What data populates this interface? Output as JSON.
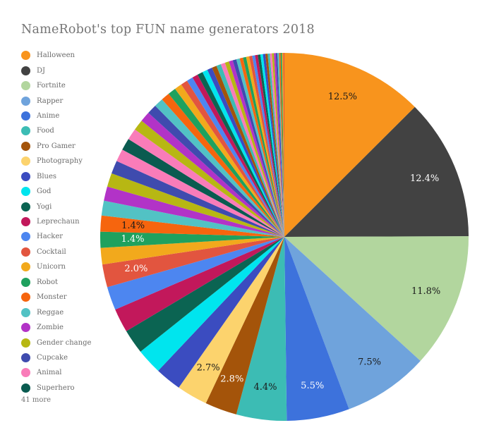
{
  "chart_data": {
    "type": "pie",
    "title": "NameRobot's top FUN name generators 2018",
    "legend_position": "left",
    "start_angle_deg": 0,
    "direction": "clockwise",
    "value_unit": "%",
    "series": [
      {
        "label": "Halloween",
        "value": 12.5,
        "color": "#F8941D",
        "labeled": true,
        "label_color": "#1a1a1a"
      },
      {
        "label": "DJ",
        "value": 12.4,
        "color": "#424242",
        "labeled": true,
        "label_color": "#ffffff"
      },
      {
        "label": "Fortnite",
        "value": 11.8,
        "color": "#B2D69E",
        "labeled": true,
        "label_color": "#1a1a1a"
      },
      {
        "label": "Rapper",
        "value": 7.5,
        "color": "#6FA3DC",
        "labeled": true,
        "label_color": "#1a1a1a"
      },
      {
        "label": "Anime",
        "value": 5.5,
        "color": "#3D72DC",
        "labeled": true,
        "label_color": "#ffffff"
      },
      {
        "label": "Food",
        "value": 4.4,
        "color": "#3CBCB4",
        "labeled": true,
        "label_color": "#1a1a1a"
      },
      {
        "label": "Pro Gamer",
        "value": 2.8,
        "color": "#A4540A",
        "labeled": true,
        "label_color": "#ffffff"
      },
      {
        "label": "Photography",
        "value": 2.7,
        "color": "#FCD36D",
        "labeled": true,
        "label_color": "#1a1a1a"
      },
      {
        "label": "Blues",
        "value": 2.3,
        "color": "#3B4CC0",
        "labeled": false
      },
      {
        "label": "God",
        "value": 2.25,
        "color": "#00E5EE",
        "labeled": false
      },
      {
        "label": "Yogi",
        "value": 2.15,
        "color": "#0B6452",
        "labeled": false
      },
      {
        "label": "Leprechaun",
        "value": 2.1,
        "color": "#C2185B",
        "labeled": false
      },
      {
        "label": "Hacker",
        "value": 2.05,
        "color": "#4D86F0",
        "labeled": false
      },
      {
        "label": "Cocktail",
        "value": 2.0,
        "color": "#E2553F",
        "labeled": true,
        "label_color": "#ffffff"
      },
      {
        "label": "Unicorn",
        "value": 1.45,
        "color": "#F2A91C",
        "labeled": false
      },
      {
        "label": "Robot",
        "value": 1.4,
        "color": "#1FA15E",
        "labeled": true,
        "label_color": "#ffffff"
      },
      {
        "label": "Monster",
        "value": 1.4,
        "color": "#F6650E",
        "labeled": true,
        "label_color": "#1a1a1a"
      },
      {
        "label": "Reggae",
        "value": 1.3,
        "color": "#52C2C4",
        "labeled": false
      },
      {
        "label": "Zombie",
        "value": 1.25,
        "color": "#B233C7",
        "labeled": false
      },
      {
        "label": "Gender change",
        "value": 1.2,
        "color": "#B7B713",
        "labeled": false
      },
      {
        "label": "Cupcake",
        "value": 1.15,
        "color": "#3F4BAE",
        "labeled": false
      },
      {
        "label": "Animal",
        "value": 1.1,
        "color": "#F97CB9",
        "labeled": false
      },
      {
        "label": "Superhero",
        "value": 1.05,
        "color": "#0A5B50",
        "labeled": false
      }
    ],
    "others": {
      "note": "41 more",
      "count": 41,
      "values": [
        1.0,
        0.95,
        0.9,
        0.85,
        0.8,
        0.75,
        0.7,
        0.65,
        0.6,
        0.55,
        0.5,
        0.48,
        0.46,
        0.44,
        0.42,
        0.4,
        0.38,
        0.36,
        0.34,
        0.32,
        0.3,
        0.29,
        0.28,
        0.27,
        0.26,
        0.25,
        0.24,
        0.23,
        0.22,
        0.21,
        0.2,
        0.19,
        0.18,
        0.17,
        0.16,
        0.15,
        0.14,
        0.13,
        0.12,
        0.11,
        0.1
      ],
      "palette": [
        "#F97CB9",
        "#B7B713",
        "#B233C7",
        "#3F4BAE",
        "#52C2C4",
        "#F6650E",
        "#1FA15E",
        "#F2A91C",
        "#E2553F",
        "#4D86F0",
        "#C2185B",
        "#0B6452",
        "#00E5EE",
        "#3B4CC0",
        "#A4540A",
        "#3CBCB4"
      ]
    }
  }
}
